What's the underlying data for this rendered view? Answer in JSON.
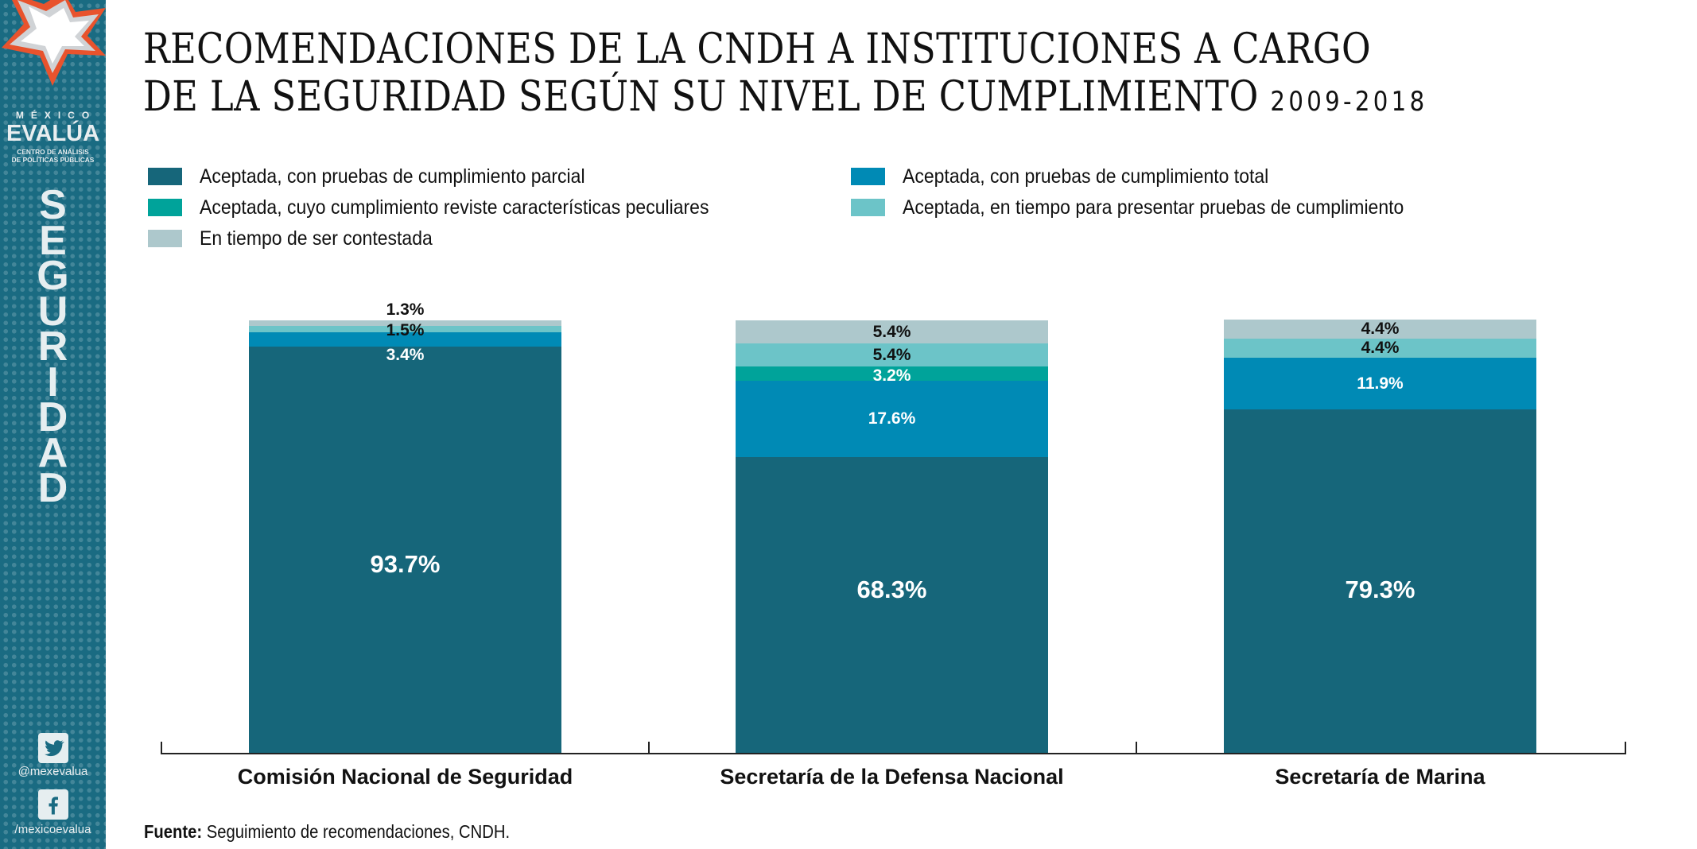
{
  "sidebar": {
    "brand_top": "MÉXICO",
    "brand_name": "EVALÚA",
    "brand_sub_1": "CENTRO DE ANÁLISIS",
    "brand_sub_2": "DE POLÍTICAS PÚBLICAS",
    "section_letters": [
      "S",
      "E",
      "G",
      "U",
      "R",
      "I",
      "D",
      "A",
      "D"
    ],
    "twitter_handle": "@mexevalua",
    "facebook_handle": "/mexicoevalua",
    "icons": [
      "star-logo-icon",
      "twitter-icon",
      "facebook-icon"
    ],
    "color": "#1a6b82"
  },
  "header": {
    "title_line1": "RECOMENDACIONES DE LA CNDH A INSTITUCIONES A CARGO",
    "title_line2": "DE LA SEGURIDAD SEGÚN SU NIVEL DE CUMPLIMIENTO",
    "years": "2009-2018"
  },
  "source": {
    "label": "Fuente:",
    "text": " Seguimiento de recomendaciones, CNDH."
  },
  "chart_data": {
    "type": "bar",
    "stacked": true,
    "title": "RECOMENDACIONES DE LA CNDH A INSTITUCIONES A CARGO DE LA SEGURIDAD SEGÚN SU NIVEL DE CUMPLIMIENTO 2009-2018",
    "xlabel": "",
    "ylabel": "",
    "ylim": [
      0,
      100
    ],
    "grid": false,
    "legend_position": "top",
    "categories": [
      "Comisión Nacional de Seguridad",
      "Secretaría de la Defensa Nacional",
      "Secretaría de Marina"
    ],
    "series": [
      {
        "name": "Aceptada, con pruebas de cumplimiento parcial",
        "color": "#16667a",
        "label_color": "#ffffff",
        "values": [
          93.7,
          68.3,
          79.3
        ],
        "labels": [
          "93.7%",
          "68.3%",
          "79.3%"
        ]
      },
      {
        "name": "Aceptada, con pruebas de cumplimiento total",
        "color": "#008ab5",
        "label_color": "#ffffff",
        "values": [
          3.4,
          17.6,
          11.9
        ],
        "labels": [
          "3.4%",
          "17.6%",
          "11.9%"
        ]
      },
      {
        "name": "Aceptada, cuyo cumplimiento reviste características peculiares",
        "color": "#00a39a",
        "label_color": "#ffffff",
        "values": [
          0,
          3.2,
          0
        ],
        "labels": [
          "",
          "3.2%",
          ""
        ]
      },
      {
        "name": "Aceptada, en tiempo para presentar pruebas de cumplimiento",
        "color": "#6cc4c8",
        "label_color": "#111111",
        "values": [
          1.5,
          5.4,
          4.4
        ],
        "labels": [
          "1.5%",
          "5.4%",
          "4.4%"
        ]
      },
      {
        "name": "En tiempo de ser contestada",
        "color": "#adc8cc",
        "label_color": "#111111",
        "values": [
          1.3,
          5.4,
          4.4
        ],
        "labels": [
          "1.3%",
          "5.4%",
          "4.4%"
        ]
      }
    ],
    "legend_order": [
      0,
      1,
      2,
      3,
      4
    ]
  }
}
